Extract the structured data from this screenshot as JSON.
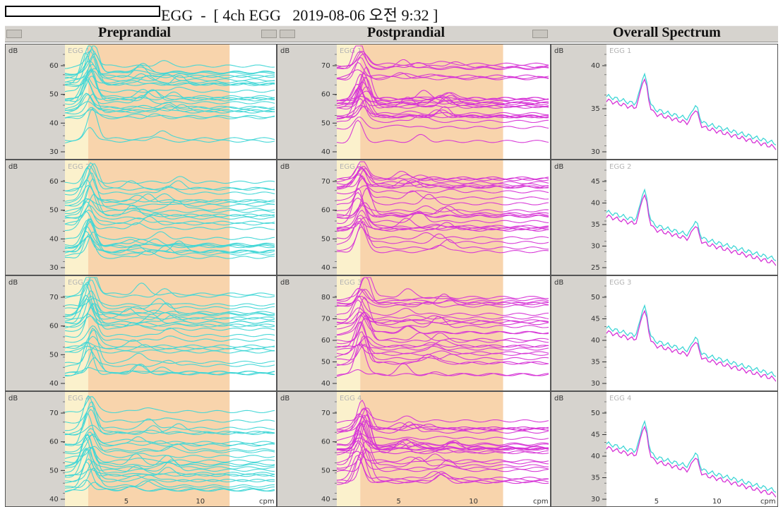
{
  "header": {
    "title": "EGG  -  [ 4ch EGG   2019-08-06 오전 9:32 ]"
  },
  "sections": {
    "pre": "Preprandial",
    "post": "Postprandial",
    "overall": "Overall Spectrum"
  },
  "axis": {
    "ylabel": "dB",
    "x_unit": "cpm",
    "x_ticks": [
      "5",
      "10"
    ]
  },
  "channels": [
    "EGG 1",
    "EGG 2",
    "EGG 3",
    "EGG 4"
  ],
  "colors": {
    "pre_lines": "#3fd6d6",
    "post_lines": "#d633d6",
    "band_yellow": "#fbf1cc",
    "band_orange": "#f8d4ac",
    "panel_bg": "#ffffff",
    "axis_bg": "#d6d3ce"
  },
  "rows": [
    {
      "pre_ticks": [
        "60",
        "50",
        "40",
        "30"
      ],
      "post_ticks": [
        "70",
        "60",
        "50",
        "40"
      ],
      "overall_ticks": [
        "40",
        "35",
        "30"
      ]
    },
    {
      "pre_ticks": [
        "60",
        "50",
        "40",
        "30"
      ],
      "post_ticks": [
        "70",
        "60",
        "50",
        "40"
      ],
      "overall_ticks": [
        "45",
        "40",
        "35",
        "30",
        "25"
      ]
    },
    {
      "pre_ticks": [
        "70",
        "60",
        "50",
        "40"
      ],
      "post_ticks": [
        "80",
        "70",
        "60",
        "50",
        "40"
      ],
      "overall_ticks": [
        "50",
        "45",
        "40",
        "35",
        "30"
      ]
    },
    {
      "pre_ticks": [
        "70",
        "60",
        "50",
        "40"
      ],
      "post_ticks": [
        "70",
        "60",
        "50",
        "40"
      ],
      "overall_ticks": [
        "50",
        "45",
        "40",
        "35",
        "30"
      ]
    }
  ]
}
